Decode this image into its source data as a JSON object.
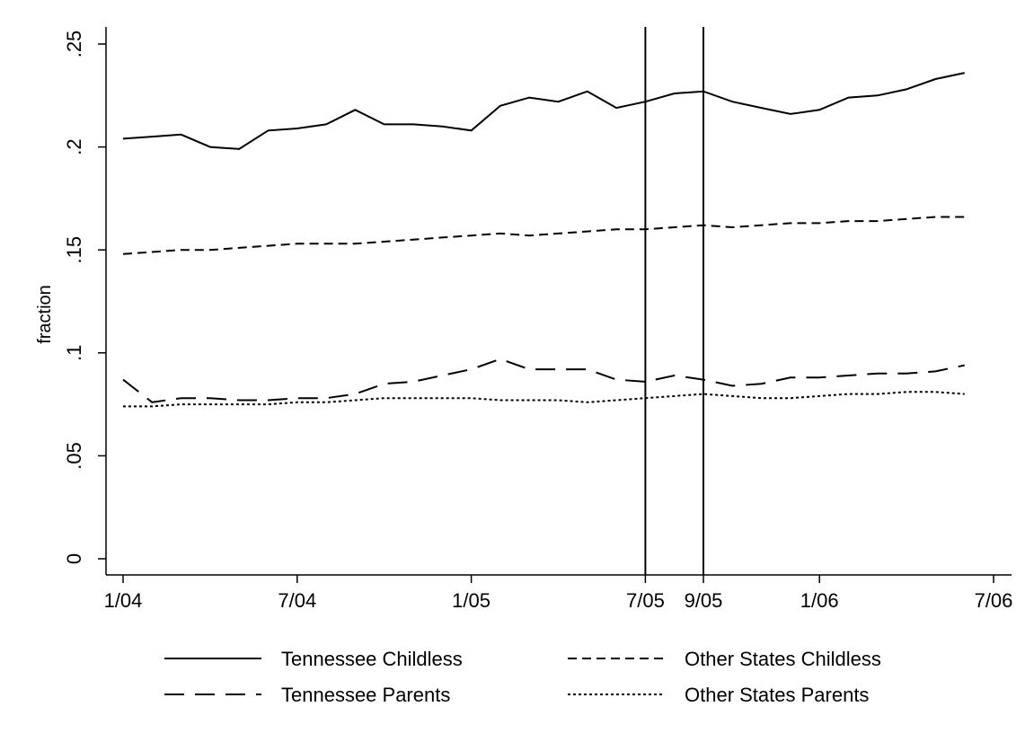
{
  "chart_data": {
    "type": "line",
    "ylabel": "fraction",
    "xlabel": "",
    "ylim": [
      0,
      0.25
    ],
    "x_domain": [
      "2004-01",
      "2006-07"
    ],
    "y_ticks": [
      0,
      0.05,
      0.1,
      0.15,
      0.2,
      0.25
    ],
    "y_tick_labels": [
      "0",
      ".05",
      ".1",
      ".15",
      ".2",
      ".25"
    ],
    "x_ticks": [
      "2004-01",
      "2004-07",
      "2005-01",
      "2005-07",
      "2005-09",
      "2006-01",
      "2006-07"
    ],
    "x_tick_labels": [
      "1/04",
      "7/04",
      "1/05",
      "7/05",
      "9/05",
      "1/06",
      "7/06"
    ],
    "reference_lines": [
      "2005-07",
      "2005-09"
    ],
    "x": [
      "2004-01",
      "2004-02",
      "2004-03",
      "2004-04",
      "2004-05",
      "2004-06",
      "2004-07",
      "2004-08",
      "2004-09",
      "2004-10",
      "2004-11",
      "2004-12",
      "2005-01",
      "2005-02",
      "2005-03",
      "2005-04",
      "2005-05",
      "2005-06",
      "2005-07",
      "2005-08",
      "2005-09",
      "2005-10",
      "2005-11",
      "2005-12",
      "2006-01",
      "2006-02",
      "2006-03",
      "2006-04",
      "2006-05",
      "2006-06"
    ],
    "series": [
      {
        "name": "Tennessee Childless",
        "style": "solid",
        "values": [
          0.204,
          0.205,
          0.206,
          0.2,
          0.199,
          0.208,
          0.209,
          0.211,
          0.218,
          0.211,
          0.211,
          0.21,
          0.208,
          0.22,
          0.224,
          0.222,
          0.227,
          0.219,
          0.222,
          0.226,
          0.227,
          0.222,
          0.219,
          0.216,
          0.218,
          0.224,
          0.225,
          0.228,
          0.233,
          0.236
        ]
      },
      {
        "name": "Other States Childless",
        "style": "dash",
        "values": [
          0.148,
          0.149,
          0.15,
          0.15,
          0.151,
          0.152,
          0.153,
          0.153,
          0.153,
          0.154,
          0.155,
          0.156,
          0.157,
          0.158,
          0.157,
          0.158,
          0.159,
          0.16,
          0.16,
          0.161,
          0.162,
          0.161,
          0.162,
          0.163,
          0.163,
          0.164,
          0.164,
          0.165,
          0.166,
          0.166
        ]
      },
      {
        "name": "Tennessee Parents",
        "style": "longdash",
        "values": [
          0.087,
          0.076,
          0.078,
          0.078,
          0.077,
          0.077,
          0.078,
          0.078,
          0.08,
          0.085,
          0.086,
          0.089,
          0.092,
          0.097,
          0.092,
          0.092,
          0.092,
          0.087,
          0.086,
          0.089,
          0.087,
          0.084,
          0.085,
          0.088,
          0.088,
          0.089,
          0.09,
          0.09,
          0.091,
          0.094
        ]
      },
      {
        "name": "Other States Parents",
        "style": "dot",
        "values": [
          0.074,
          0.074,
          0.075,
          0.075,
          0.075,
          0.075,
          0.076,
          0.076,
          0.077,
          0.078,
          0.078,
          0.078,
          0.078,
          0.077,
          0.077,
          0.077,
          0.076,
          0.077,
          0.078,
          0.079,
          0.08,
          0.079,
          0.078,
          0.078,
          0.079,
          0.08,
          0.08,
          0.081,
          0.081,
          0.08
        ]
      }
    ],
    "legend": {
      "placement": "bottom",
      "columns": 2,
      "entries": [
        {
          "label": "Tennessee Childless",
          "style": "solid"
        },
        {
          "label": "Other States Childless",
          "style": "dash"
        },
        {
          "label": "Tennessee Parents",
          "style": "longdash"
        },
        {
          "label": "Other States Parents",
          "style": "dot"
        }
      ]
    },
    "colors": {
      "line": "#000000",
      "background": "#ffffff"
    },
    "grid": false
  }
}
